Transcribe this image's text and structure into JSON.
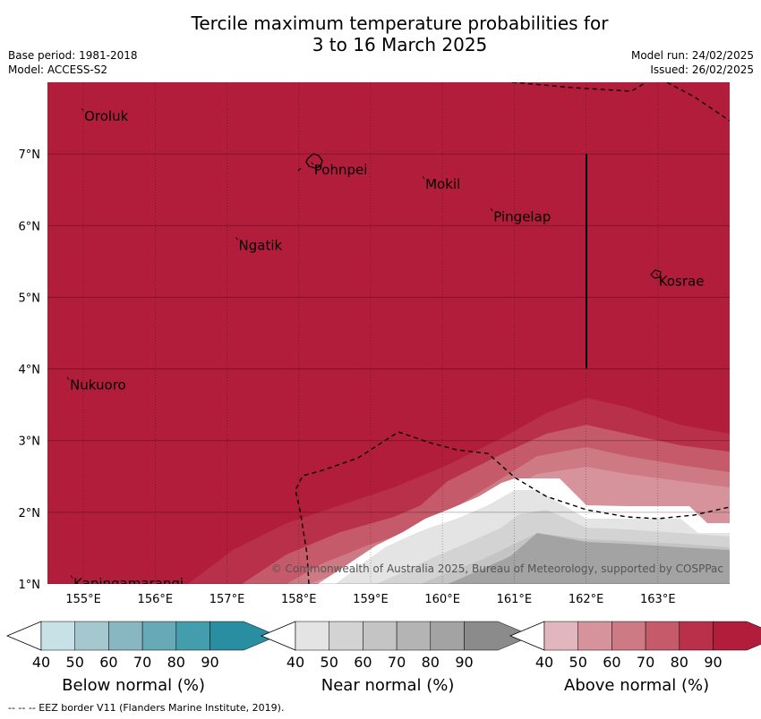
{
  "title": {
    "line1": "Tercile maximum temperature probabilities for",
    "line2": "3 to 16 March 2025"
  },
  "meta": {
    "base_period": "Base period: 1981-2018",
    "model": "Model: ACCESS-S2",
    "model_run": "Model run: 24/02/2025",
    "issued": "Issued: 26/02/2025"
  },
  "map": {
    "lon_range": [
      154.5,
      164.0
    ],
    "lat_range": [
      1.0,
      8.0
    ],
    "lon_ticks": [
      {
        "value": 155,
        "label": "155°E"
      },
      {
        "value": 156,
        "label": "156°E"
      },
      {
        "value": 157,
        "label": "157°E"
      },
      {
        "value": 158,
        "label": "158°E"
      },
      {
        "value": 159,
        "label": "159°E"
      },
      {
        "value": 160,
        "label": "160°E"
      },
      {
        "value": 161,
        "label": "161°E"
      },
      {
        "value": 162,
        "label": "162°E"
      },
      {
        "value": 163,
        "label": "163°E"
      }
    ],
    "lat_ticks": [
      {
        "value": 1,
        "label": "1°N"
      },
      {
        "value": 2,
        "label": "2°N"
      },
      {
        "value": 3,
        "label": "3°N"
      },
      {
        "value": 4,
        "label": "4°N"
      },
      {
        "value": 5,
        "label": "5°N"
      },
      {
        "value": 6,
        "label": "6°N"
      },
      {
        "value": 7,
        "label": "7°N"
      }
    ],
    "places": [
      {
        "name": "Oroluk",
        "lon": 155.0,
        "lat": 7.6
      },
      {
        "name": "Pohnpei",
        "lon": 158.2,
        "lat": 6.85
      },
      {
        "name": "Mokil",
        "lon": 159.75,
        "lat": 6.65
      },
      {
        "name": "Pingelap",
        "lon": 160.7,
        "lat": 6.2
      },
      {
        "name": "Ngatik",
        "lon": 157.15,
        "lat": 5.8
      },
      {
        "name": "Kosrae",
        "lon": 163.0,
        "lat": 5.3
      },
      {
        "name": "Nukuoro",
        "lon": 154.8,
        "lat": 3.85
      },
      {
        "name": "Kapingamarangi",
        "lon": 154.85,
        "lat": 1.08
      }
    ],
    "background_color": "#b11d3b",
    "copyright": "© Commonwealth of Australia 2025, Bureau of Meteorology, supported by COSPPac"
  },
  "colorbars": [
    {
      "label": "Below normal (%)",
      "ticks": [
        "40",
        "50",
        "60",
        "70",
        "80",
        "90"
      ],
      "colors": [
        "#c8e1e7",
        "#a5c8cf",
        "#89b7c1",
        "#67a9b6",
        "#449dac",
        "#2a8ea3"
      ]
    },
    {
      "label": "Near normal (%)",
      "ticks": [
        "40",
        "50",
        "60",
        "70",
        "80",
        "90"
      ],
      "colors": [
        "#e4e4e4",
        "#d3d3d3",
        "#c4c4c4",
        "#b4b4b4",
        "#a3a3a3",
        "#8b8b8b"
      ]
    },
    {
      "label": "Above normal (%)",
      "ticks": [
        "40",
        "50",
        "60",
        "70",
        "80",
        "90"
      ],
      "colors": [
        "#e1b6bd",
        "#d6939c",
        "#cd7a85",
        "#c55a6a",
        "#b8304a",
        "#b11d3b"
      ]
    }
  ],
  "footnote": "--  --  -- EEZ border V11 (Flanders Marine Institute, 2019)."
}
